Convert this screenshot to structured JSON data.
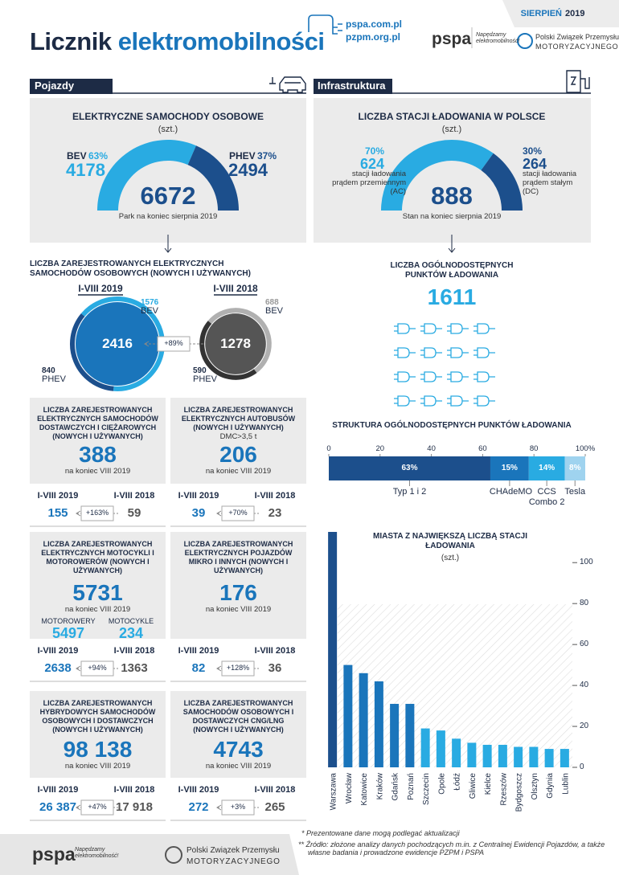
{
  "header": {
    "month": "SIERPIEŃ",
    "year": "2019",
    "title_part1": "Licznik",
    "title_part2": "elektromobilności",
    "websites": [
      "pspa.com.pl",
      "pzpm.org.pl"
    ],
    "pspa_logo": "pspa",
    "pspa_slogan": "Napędzamy elektromobilność!",
    "pzpm_name": "Polski Związek Przemysłu",
    "pzpm_name2": "MOTORYZACYJNEGO"
  },
  "sections": {
    "vehicles": "Pojazdy",
    "infrastructure": "Infrastruktura"
  },
  "cars_gauge": {
    "title": "ELEKTRYCZNE SAMOCHODY OSOBOWE",
    "unit": "(szt.)",
    "total": 6672,
    "caption": "Park na koniec sierpnia 2019",
    "parts": [
      {
        "name": "BEV",
        "share": {
          "value": 63,
          "label": "63%"
        },
        "count": 4178
      },
      {
        "name": "PHEV",
        "share": {
          "value": 37,
          "label": "37%"
        },
        "count": 2494
      }
    ]
  },
  "stations_gauge": {
    "title": "LICZBA STACJI ŁADOWANIA W POLSCE",
    "unit": "(szt.)",
    "total": 888,
    "caption": "Stan na koniec sierpnia 2019",
    "parts": [
      {
        "share": {
          "value": 70,
          "label": "70%"
        },
        "count": 624,
        "desc": "stacji ładowania prądem przemiennym (AC)"
      },
      {
        "share": {
          "value": 30,
          "label": "30%"
        },
        "count": 264,
        "desc": "stacji ładowania prądem stałym (DC)"
      }
    ]
  },
  "registered_cars": {
    "title": "LICZBA ZAREJESTROWANYCH ELEKTRYCZNYCH SAMOCHODÓW OSOBOWYCH (NOWYCH I UŻYWANYCH)",
    "change": "+89%",
    "periods": [
      {
        "period": "I-VIII 2019",
        "total": 2416,
        "bev": 1576,
        "bev_label": "BEV",
        "phev": 840,
        "phev_label": "PHEV"
      },
      {
        "period": "I-VIII 2018",
        "total": 1278,
        "bev": 688,
        "bev_label": "BEV",
        "phev": 590,
        "phev_label": "PHEV"
      }
    ]
  },
  "charging_points": {
    "title": "LICZBA OGÓLNODOSTĘPNYCH PUNKTÓW ŁADOWANIA",
    "total": 1611
  },
  "boxes": [
    {
      "title": "LICZBA ZAREJESTROWANYCH ELEKTRYCZNYCH SAMOCHODÓW DOSTAWCZYCH I CIĘŻAROWYCH (NOWYCH I UŻYWANYCH)",
      "total": 388,
      "total_caption": "na koniec VIII 2019",
      "period_current": "I-VIII 2019",
      "value_current": 155,
      "change": "+163%",
      "period_previous": "I-VIII 2018",
      "value_previous": 59
    },
    {
      "title": "LICZBA ZAREJESTROWANYCH ELEKTRYCZNYCH AUTOBUSÓW (NOWYCH I UŻYWANYCH)",
      "note": "DMC>3,5 t",
      "total": 206,
      "total_caption": "na koniec VIII 2019",
      "period_current": "I-VIII 2019",
      "value_current": 39,
      "change": "+70%",
      "period_previous": "I-VIII 2018",
      "value_previous": 23
    },
    {
      "title": "LICZBA ZAREJESTROWANYCH ELEKTRYCZNYCH MOTOCYKLI I MOTOROWERÓW (NOWYCH I UŻYWANYCH)",
      "total": 5731,
      "total_caption": "na koniec VIII 2019",
      "split": [
        {
          "label": "MOTOROWERY",
          "value": 5497
        },
        {
          "label": "MOTOCYKLE",
          "value": 234
        }
      ],
      "period_current": "I-VIII 2019",
      "value_current": 2638,
      "change": "+94%",
      "period_previous": "I-VIII 2018",
      "value_previous": 1363
    },
    {
      "title": "LICZBA ZAREJESTROWANYCH ELEKTRYCZNYCH POJAZDÓW MIKRO I INNYCH (NOWYCH I UŻYWANYCH)",
      "total": 176,
      "total_caption": "na koniec VIII 2019",
      "period_current": "I-VIII 2019",
      "value_current": 82,
      "change": "+128%",
      "period_previous": "I-VIII 2018",
      "value_previous": 36
    },
    {
      "title": "LICZBA ZAREJESTROWANYCH HYBRYDOWYCH SAMOCHODÓW OSOBOWYCH I DOSTAWCZYCH (NOWYCH I UŻYWANYCH)",
      "total": "98 138",
      "total_caption": "na koniec VIII 2019",
      "period_current": "I-VIII 2019",
      "value_current": "26 387",
      "change": "+47%",
      "period_previous": "I-VIII 2018",
      "value_previous": "17 918"
    },
    {
      "title": "LICZBA ZAREJESTROWANYCH SAMOCHODÓW OSOBOWYCH I DOSTAWCZYCH CNG/LNG (NOWYCH I UŻYWANYCH)",
      "total": 4743,
      "total_caption": "na koniec VIII 2019",
      "period_current": "I-VIII 2019",
      "value_current": 272,
      "change": "+3%",
      "period_previous": "I-VIII 2018",
      "value_previous": 265
    }
  ],
  "chart_data": [
    {
      "type": "stacked-bar",
      "title": "STRUKTURA OGÓLNODOSTĘPNYCH PUNKTÓW ŁADOWANIA",
      "categories": [
        "Typ 1 i 2",
        "CHAdeMO",
        "CCS Combo 2",
        "Tesla"
      ],
      "values": [
        63,
        15,
        14,
        8
      ],
      "value_labels": [
        "63%",
        "15%",
        "14%",
        "8%"
      ],
      "colors": [
        "#1c4f8c",
        "#1a75bb",
        "#29abe2",
        "#9fd3ef"
      ],
      "xlim": [
        0,
        100
      ],
      "xticks": [
        0,
        20,
        40,
        60,
        80,
        {
          "value": 100,
          "label": "100%"
        }
      ]
    },
    {
      "type": "bar",
      "title": "MIASTA Z NAJWIĘKSZĄ LICZBĄ STACJI ŁADOWANIA",
      "subtitle": "(szt.)",
      "categories": [
        "Warszawa",
        "Wrocław",
        "Katowice",
        "Kraków",
        "Gdańsk",
        "Poznań",
        "Szczecin",
        "Opole",
        "Łódź",
        "Gliwice",
        "Kielce",
        "Rzeszów",
        "Bydgoszcz",
        "Olsztyn",
        "Gdynia",
        "Lublin"
      ],
      "values": [
        115,
        50,
        46,
        42,
        31,
        31,
        19,
        18,
        14,
        12,
        11,
        11,
        10,
        10,
        9,
        9
      ],
      "colors": [
        "#1c4f8c",
        "#1a75bb",
        "#1a75bb",
        "#1a75bb",
        "#1a75bb",
        "#1a75bb",
        "#29abe2",
        "#29abe2",
        "#29abe2",
        "#29abe2",
        "#29abe2",
        "#29abe2",
        "#29abe2",
        "#29abe2",
        "#29abe2",
        "#29abe2"
      ],
      "ylim": [
        0,
        115
      ],
      "yticks": [
        0,
        20,
        40,
        60,
        80,
        100
      ],
      "y_axis_side": "right"
    }
  ],
  "footnotes": [
    "* Prezentowane dane mogą podlegać aktualizacji",
    "** Źródło: złożone analizy danych pochodzących m.in. z Centralnej Ewidencji Pojazdów, a także własne badania i prowadzone ewidencje PZPM i PSPA"
  ],
  "footer": {
    "pspa_logo": "pspa",
    "pspa_slogan": "Napędzamy elektromobilność!",
    "pzpm_name": "Polski Związek Przemysłu",
    "pzpm_name2": "MOTORYZACYJNEGO"
  }
}
